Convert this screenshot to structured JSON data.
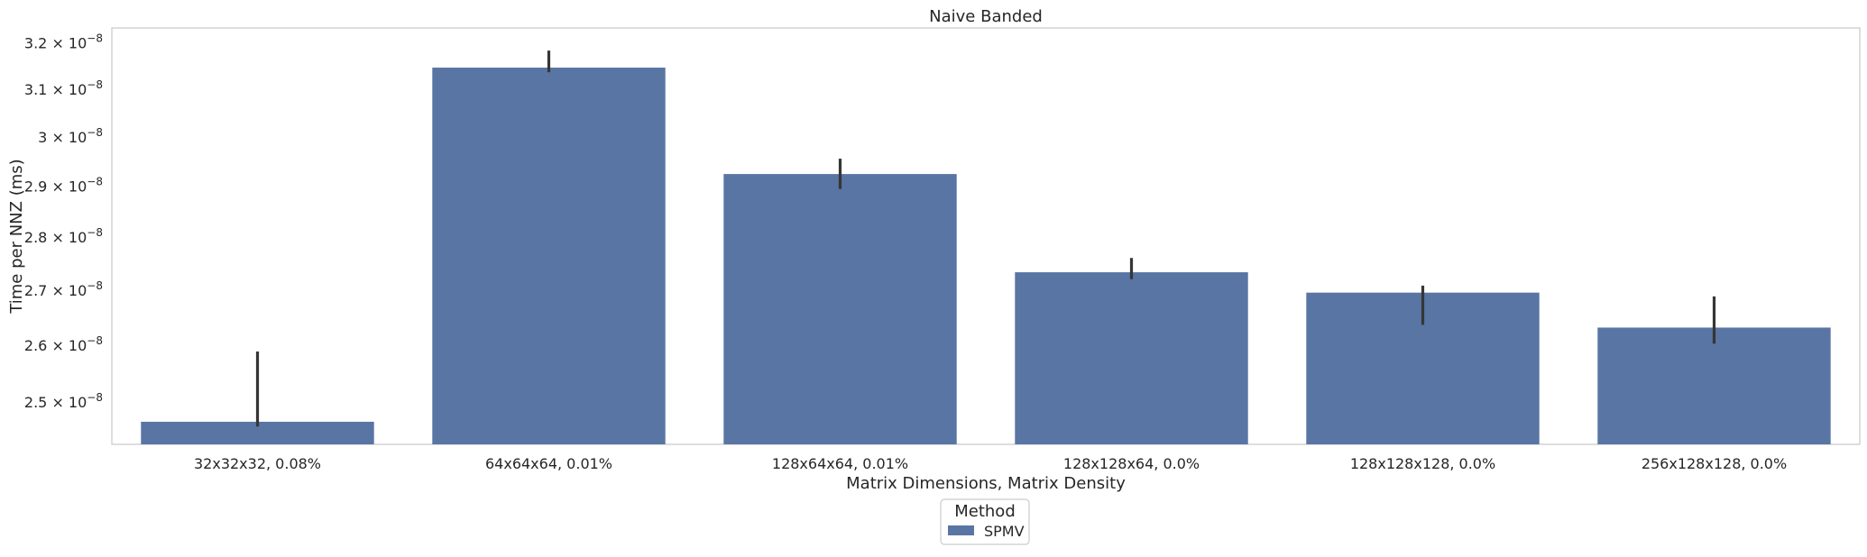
{
  "chart_data": {
    "type": "bar",
    "title": "Naive Banded",
    "xlabel": "Matrix Dimensions, Matrix Density",
    "ylabel": "Time per NNZ (ms)",
    "y_scale": "log",
    "ylim": [
      2.43e-08,
      3.235e-08
    ],
    "grid": false,
    "categories": [
      "32x32x32, 0.08%",
      "64x64x64, 0.01%",
      "128x64x64, 0.01%",
      "128x128x64, 0.0%",
      "128x128x128, 0.0%",
      "256x128x128, 0.0%"
    ],
    "series": [
      {
        "name": "SPMV",
        "color": "#5975a4",
        "values": [
          2.468e-08,
          3.148e-08,
          2.926e-08,
          2.735e-08,
          2.697e-08,
          2.633e-08
        ],
        "error_low": [
          2.46e-08,
          3.138e-08,
          2.896e-08,
          2.722e-08,
          2.638e-08,
          2.604e-08
        ],
        "error_high": [
          2.59e-08,
          3.185e-08,
          2.957e-08,
          2.762e-08,
          2.71e-08,
          2.69e-08
        ]
      }
    ],
    "yticks": [
      {
        "value": 2.5e-08,
        "label_base": "2.5 × 10",
        "label_exp": "−8"
      },
      {
        "value": 2.6e-08,
        "label_base": "2.6 × 10",
        "label_exp": "−8"
      },
      {
        "value": 2.7e-08,
        "label_base": "2.7 × 10",
        "label_exp": "−8"
      },
      {
        "value": 2.8e-08,
        "label_base": "2.8 × 10",
        "label_exp": "−8"
      },
      {
        "value": 2.9e-08,
        "label_base": "2.9 × 10",
        "label_exp": "−8"
      },
      {
        "value": 3e-08,
        "label_base": "3 × 10",
        "label_exp": "−8"
      },
      {
        "value": 3.1e-08,
        "label_base": "3.1 × 10",
        "label_exp": "−8"
      },
      {
        "value": 3.2e-08,
        "label_base": "3.2 × 10",
        "label_exp": "−8"
      }
    ],
    "legend": {
      "title": "Method",
      "placement": "bottom-center",
      "entries": [
        {
          "label": "SPMV",
          "color": "#5975a4"
        }
      ]
    },
    "colors": {
      "bar": "#5975a4",
      "errorbar": "#363636",
      "axes_edge": "#cccccc"
    }
  }
}
